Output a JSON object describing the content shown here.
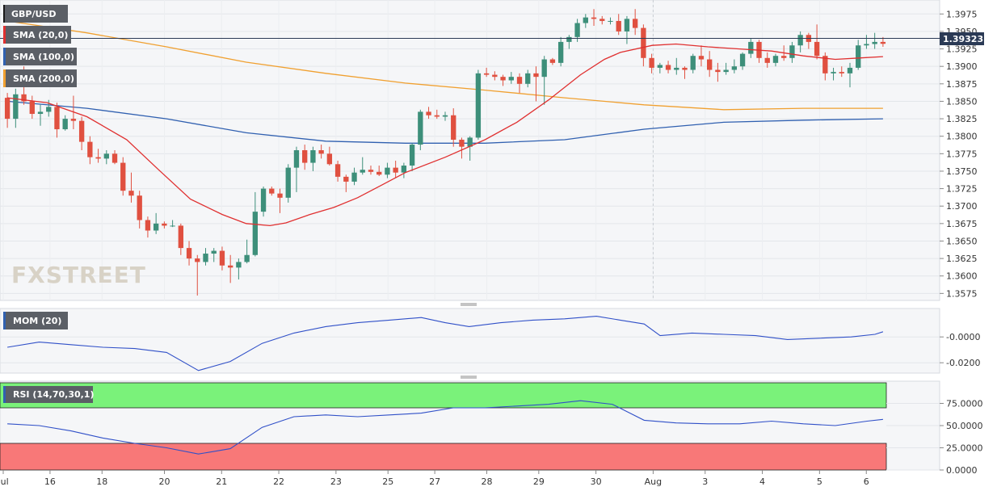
{
  "chart_data": [
    {
      "type": "candlestick",
      "title": "GBP/USD",
      "price_tag": "1.39323",
      "current_price": 1.39323,
      "ylim": [
        1.3565,
        1.3995
      ],
      "y_ticks": [
        "1.3975",
        "1.3950",
        "1.3925",
        "1.3900",
        "1.3875",
        "1.3850",
        "1.3825",
        "1.3800",
        "1.3775",
        "1.3750",
        "1.3725",
        "1.3700",
        "1.3675",
        "1.3650",
        "1.3625",
        "1.3600",
        "1.3575"
      ],
      "x_ticks": [
        "Jul",
        "16",
        "18",
        "20",
        "21",
        "22",
        "23",
        "25",
        "27",
        "28",
        "29",
        "30",
        "Aug",
        "3",
        "4",
        "5",
        "6"
      ],
      "watermark": "FXSTREET",
      "colors": {
        "up": "#3d8f7a",
        "down": "#e05040",
        "sma20": "#e03030",
        "sma100": "#3060b0",
        "sma200": "#f0a030"
      },
      "indicators": [
        {
          "label": "SMA (20,0)",
          "color": "#e03030"
        },
        {
          "label": "SMA (100,0)",
          "color": "#3060b0"
        },
        {
          "label": "SMA (200,0)",
          "color": "#f0a030"
        }
      ],
      "candles": [
        [
          1.3855,
          1.3862,
          1.3812,
          1.3825
        ],
        [
          1.3825,
          1.3868,
          1.3812,
          1.386
        ],
        [
          1.386,
          1.39,
          1.3845,
          1.385
        ],
        [
          1.385,
          1.3858,
          1.3825,
          1.3832
        ],
        [
          1.3832,
          1.3845,
          1.3815,
          1.3835
        ],
        [
          1.3835,
          1.3852,
          1.3828,
          1.3842
        ],
        [
          1.3842,
          1.3848,
          1.3798,
          1.381
        ],
        [
          1.381,
          1.383,
          1.3808,
          1.3825
        ],
        [
          1.3825,
          1.3858,
          1.381,
          1.3822
        ],
        [
          1.3822,
          1.3828,
          1.378,
          1.3792
        ],
        [
          1.3792,
          1.38,
          1.376,
          1.377
        ],
        [
          1.377,
          1.3782,
          1.3762,
          1.3768
        ],
        [
          1.3768,
          1.378,
          1.376,
          1.3775
        ],
        [
          1.3775,
          1.378,
          1.376,
          1.3762
        ],
        [
          1.3762,
          1.377,
          1.3715,
          1.3722
        ],
        [
          1.3722,
          1.3748,
          1.3705,
          1.3715
        ],
        [
          1.3715,
          1.3722,
          1.3668,
          1.368
        ],
        [
          1.368,
          1.3685,
          1.3655,
          1.3665
        ],
        [
          1.3665,
          1.369,
          1.366,
          1.3675
        ],
        [
          1.3675,
          1.3678,
          1.3668,
          1.3672
        ],
        [
          1.3672,
          1.368,
          1.367,
          1.3672
        ],
        [
          1.3672,
          1.3675,
          1.363,
          1.364
        ],
        [
          1.364,
          1.365,
          1.3615,
          1.3625
        ],
        [
          1.3625,
          1.363,
          1.3572,
          1.362
        ],
        [
          1.362,
          1.364,
          1.3615,
          1.3632
        ],
        [
          1.3632,
          1.364,
          1.362,
          1.3636
        ],
        [
          1.3636,
          1.3642,
          1.3608,
          1.3615
        ],
        [
          1.3615,
          1.363,
          1.359,
          1.3612
        ],
        [
          1.3612,
          1.3625,
          1.3595,
          1.362
        ],
        [
          1.362,
          1.3652,
          1.3618,
          1.363
        ],
        [
          1.363,
          1.372,
          1.3628,
          1.3692
        ],
        [
          1.3692,
          1.3728,
          1.3685,
          1.3725
        ],
        [
          1.3725,
          1.3728,
          1.3715,
          1.3718
        ],
        [
          1.3718,
          1.3725,
          1.369,
          1.3712
        ],
        [
          1.3712,
          1.376,
          1.3705,
          1.3755
        ],
        [
          1.3755,
          1.3785,
          1.372,
          1.378
        ],
        [
          1.378,
          1.3788,
          1.3752,
          1.3762
        ],
        [
          1.3762,
          1.3785,
          1.375,
          1.378
        ],
        [
          1.378,
          1.3788,
          1.3768,
          1.3775
        ],
        [
          1.3775,
          1.3785,
          1.3758,
          1.376
        ],
        [
          1.376,
          1.3765,
          1.3735,
          1.3742
        ],
        [
          1.3742,
          1.3745,
          1.372,
          1.3735
        ],
        [
          1.3735,
          1.3755,
          1.373,
          1.3748
        ],
        [
          1.3748,
          1.377,
          1.3745,
          1.3752
        ],
        [
          1.3752,
          1.3758,
          1.3745,
          1.3749
        ],
        [
          1.3749,
          1.3758,
          1.3743,
          1.3745
        ],
        [
          1.3745,
          1.3762,
          1.374,
          1.3755
        ],
        [
          1.3755,
          1.3765,
          1.374,
          1.3748
        ],
        [
          1.3748,
          1.3762,
          1.374,
          1.3758
        ],
        [
          1.3758,
          1.379,
          1.375,
          1.3788
        ],
        [
          1.3788,
          1.3838,
          1.378,
          1.3835
        ],
        [
          1.3835,
          1.3842,
          1.3825,
          1.383
        ],
        [
          1.383,
          1.3838,
          1.3825,
          1.3828
        ],
        [
          1.3828,
          1.3835,
          1.3822,
          1.383
        ],
        [
          1.383,
          1.384,
          1.3785,
          1.3795
        ],
        [
          1.3795,
          1.3798,
          1.3768,
          1.3785
        ],
        [
          1.3785,
          1.38,
          1.3765,
          1.3798
        ],
        [
          1.3798,
          1.3895,
          1.3795,
          1.389
        ],
        [
          1.389,
          1.3898,
          1.3885,
          1.3888
        ],
        [
          1.3888,
          1.3893,
          1.388,
          1.3885
        ],
        [
          1.3885,
          1.3888,
          1.3872,
          1.388
        ],
        [
          1.388,
          1.3892,
          1.3875,
          1.3885
        ],
        [
          1.3885,
          1.389,
          1.3862,
          1.3875
        ],
        [
          1.3875,
          1.3895,
          1.387,
          1.389
        ],
        [
          1.389,
          1.39,
          1.385,
          1.3885
        ],
        [
          1.3885,
          1.3915,
          1.3845,
          1.391
        ],
        [
          1.391,
          1.3912,
          1.3902,
          1.3905
        ],
        [
          1.3905,
          1.3942,
          1.39,
          1.3935
        ],
        [
          1.3935,
          1.3945,
          1.3925,
          1.3942
        ],
        [
          1.3942,
          1.3968,
          1.3935,
          1.3962
        ],
        [
          1.3962,
          1.3975,
          1.3955,
          1.397
        ],
        [
          1.397,
          1.3982,
          1.3958,
          1.3968
        ],
        [
          1.3968,
          1.3972,
          1.396,
          1.3965
        ],
        [
          1.3965,
          1.397,
          1.396,
          1.3965
        ],
        [
          1.3965,
          1.3975,
          1.3945,
          1.395
        ],
        [
          1.395,
          1.3972,
          1.3932,
          1.3968
        ],
        [
          1.3968,
          1.3982,
          1.3945,
          1.3955
        ],
        [
          1.3955,
          1.396,
          1.39,
          1.3912
        ],
        [
          1.3912,
          1.3918,
          1.389,
          1.3898
        ],
        [
          1.3898,
          1.3905,
          1.389,
          1.3902
        ],
        [
          1.3902,
          1.3908,
          1.389,
          1.3895
        ],
        [
          1.3895,
          1.3912,
          1.3888,
          1.3898
        ],
        [
          1.3898,
          1.39,
          1.3882,
          1.3895
        ],
        [
          1.3895,
          1.3918,
          1.389,
          1.3915
        ],
        [
          1.3915,
          1.393,
          1.39,
          1.391
        ],
        [
          1.391,
          1.3922,
          1.3885,
          1.3895
        ],
        [
          1.3895,
          1.3905,
          1.3878,
          1.3892
        ],
        [
          1.3892,
          1.3905,
          1.3888,
          1.3895
        ],
        [
          1.3895,
          1.391,
          1.389,
          1.39
        ],
        [
          1.39,
          1.392,
          1.3895,
          1.3918
        ],
        [
          1.3918,
          1.394,
          1.3912,
          1.3935
        ],
        [
          1.3935,
          1.3938,
          1.3905,
          1.3912
        ],
        [
          1.3912,
          1.392,
          1.3898,
          1.3905
        ],
        [
          1.3905,
          1.3918,
          1.39,
          1.3915
        ],
        [
          1.3915,
          1.393,
          1.3908,
          1.3912
        ],
        [
          1.3912,
          1.3935,
          1.3905,
          1.393
        ],
        [
          1.393,
          1.395,
          1.392,
          1.3945
        ],
        [
          1.3945,
          1.3948,
          1.3925,
          1.3935
        ],
        [
          1.3935,
          1.396,
          1.391,
          1.3915
        ],
        [
          1.3915,
          1.392,
          1.388,
          1.389
        ],
        [
          1.389,
          1.3898,
          1.388,
          1.3892
        ],
        [
          1.3892,
          1.39,
          1.3885,
          1.389
        ],
        [
          1.389,
          1.3905,
          1.387,
          1.3898
        ],
        [
          1.3898,
          1.3938,
          1.3895,
          1.393
        ],
        [
          1.393,
          1.3945,
          1.3925,
          1.3932
        ],
        [
          1.3932,
          1.3948,
          1.3925,
          1.3935
        ],
        [
          1.3935,
          1.3942,
          1.3928,
          1.39323
        ]
      ],
      "sma20": [
        [
          0,
          1.3855
        ],
        [
          5,
          1.3848
        ],
        [
          10,
          1.3828
        ],
        [
          15,
          1.3795
        ],
        [
          19,
          1.3752
        ],
        [
          23,
          1.371
        ],
        [
          27,
          1.3688
        ],
        [
          30,
          1.3675
        ],
        [
          33,
          1.3672
        ],
        [
          35,
          1.3676
        ],
        [
          38,
          1.3688
        ],
        [
          41,
          1.3698
        ],
        [
          44,
          1.3712
        ],
        [
          47,
          1.373
        ],
        [
          50,
          1.3748
        ],
        [
          55,
          1.377
        ],
        [
          60,
          1.3795
        ],
        [
          64,
          1.382
        ],
        [
          68,
          1.3852
        ],
        [
          72,
          1.3888
        ],
        [
          75,
          1.391
        ],
        [
          77,
          1.392
        ],
        [
          81,
          1.393
        ],
        [
          84,
          1.3932
        ],
        [
          88,
          1.3928
        ],
        [
          92,
          1.3925
        ],
        [
          96,
          1.3922
        ],
        [
          100,
          1.3915
        ],
        [
          104,
          1.391
        ],
        [
          107,
          1.3912
        ],
        [
          110,
          1.3914
        ]
      ],
      "sma100": [
        [
          0,
          1.385
        ],
        [
          10,
          1.384
        ],
        [
          20,
          1.3825
        ],
        [
          30,
          1.3805
        ],
        [
          40,
          1.3793
        ],
        [
          50,
          1.379
        ],
        [
          60,
          1.379
        ],
        [
          70,
          1.3795
        ],
        [
          80,
          1.381
        ],
        [
          90,
          1.382
        ],
        [
          100,
          1.3823
        ],
        [
          110,
          1.3825
        ]
      ],
      "sma200": [
        [
          0,
          1.3965
        ],
        [
          10,
          1.3948
        ],
        [
          20,
          1.3928
        ],
        [
          30,
          1.3906
        ],
        [
          40,
          1.389
        ],
        [
          50,
          1.3876
        ],
        [
          60,
          1.3866
        ],
        [
          70,
          1.3855
        ],
        [
          80,
          1.3845
        ],
        [
          90,
          1.3838
        ],
        [
          100,
          1.384
        ],
        [
          110,
          1.384
        ]
      ]
    },
    {
      "type": "line",
      "label": "MOM (20)",
      "y_ticks": [
        "-0.0000",
        "-0.0200"
      ],
      "ylim": [
        -0.028,
        0.022
      ],
      "points": [
        [
          0,
          -0.008
        ],
        [
          4,
          -0.004
        ],
        [
          8,
          -0.006
        ],
        [
          12,
          -0.008
        ],
        [
          16,
          -0.009
        ],
        [
          20,
          -0.012
        ],
        [
          24,
          -0.026
        ],
        [
          28,
          -0.019
        ],
        [
          32,
          -0.005
        ],
        [
          36,
          0.003
        ],
        [
          40,
          0.008
        ],
        [
          44,
          0.011
        ],
        [
          48,
          0.013
        ],
        [
          52,
          0.015
        ],
        [
          55,
          0.011
        ],
        [
          58,
          0.008
        ],
        [
          62,
          0.011
        ],
        [
          66,
          0.013
        ],
        [
          70,
          0.014
        ],
        [
          74,
          0.016
        ],
        [
          77,
          0.013
        ],
        [
          80,
          0.01
        ],
        [
          82,
          0.001
        ],
        [
          86,
          0.003
        ],
        [
          90,
          0.002
        ],
        [
          94,
          0.001
        ],
        [
          98,
          -0.002
        ],
        [
          102,
          -0.001
        ],
        [
          106,
          0.0
        ],
        [
          109,
          0.002
        ],
        [
          110,
          0.004
        ]
      ]
    },
    {
      "type": "line",
      "label": "RSI (14,70,30,1)",
      "y_ticks": [
        "75.0000",
        "50.0000",
        "25.0000",
        "0.0000"
      ],
      "ylim": [
        0,
        100
      ],
      "overbought": 70,
      "oversold": 30,
      "points": [
        [
          0,
          52
        ],
        [
          4,
          50
        ],
        [
          8,
          44
        ],
        [
          12,
          36
        ],
        [
          16,
          30
        ],
        [
          20,
          25
        ],
        [
          24,
          18
        ],
        [
          28,
          24
        ],
        [
          32,
          48
        ],
        [
          36,
          60
        ],
        [
          40,
          62
        ],
        [
          44,
          60
        ],
        [
          48,
          62
        ],
        [
          52,
          64
        ],
        [
          56,
          70
        ],
        [
          60,
          70
        ],
        [
          64,
          72
        ],
        [
          68,
          74
        ],
        [
          72,
          78
        ],
        [
          76,
          74
        ],
        [
          80,
          56
        ],
        [
          84,
          53
        ],
        [
          88,
          52
        ],
        [
          92,
          52
        ],
        [
          96,
          55
        ],
        [
          100,
          52
        ],
        [
          104,
          50
        ],
        [
          108,
          55
        ],
        [
          110,
          57
        ]
      ]
    }
  ]
}
